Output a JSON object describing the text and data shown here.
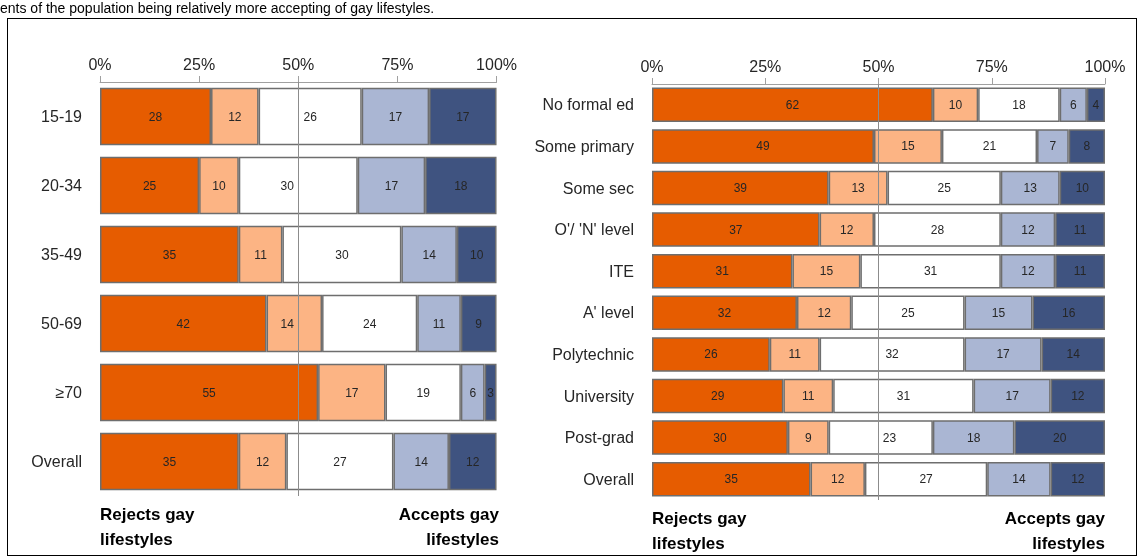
{
  "chart_data": [
    {
      "type": "bar",
      "orientation": "horizontal",
      "stacked": true,
      "title": "ents of the population being relatively more accepting of gay lifestyles.",
      "categories": [
        "15-19",
        "20-34",
        "35-49",
        "50-69",
        "≥70",
        "Overall"
      ],
      "series": [
        {
          "color": "#e65c00",
          "values": [
            28,
            25,
            35,
            42,
            55,
            35
          ]
        },
        {
          "color": "#fcb484",
          "values": [
            12,
            10,
            11,
            14,
            17,
            12
          ]
        },
        {
          "color": "#ffffff",
          "values": [
            26,
            30,
            30,
            24,
            19,
            27
          ]
        },
        {
          "color": "#aab6d3",
          "values": [
            17,
            17,
            14,
            11,
            6,
            14
          ]
        },
        {
          "color": "#3f5380",
          "values": [
            17,
            18,
            10,
            9,
            3,
            12
          ]
        }
      ],
      "xlim": [
        0,
        100
      ],
      "xticks": [
        {
          "value": 0,
          "label": "0%"
        },
        {
          "value": 25,
          "label": "25%"
        },
        {
          "value": 50,
          "label": "50%"
        },
        {
          "value": 75,
          "label": "75%"
        },
        {
          "value": 100,
          "label": "100%"
        }
      ],
      "ref_lines": [
        {
          "axis": "x",
          "value": 50,
          "color": "#8c8c8c"
        }
      ],
      "data_labels": true,
      "annotations": [
        "Rejects gay lifestyles",
        "Accepts gay lifestyles"
      ]
    },
    {
      "type": "bar",
      "orientation": "horizontal",
      "stacked": true,
      "categories": [
        "No formal ed",
        "Some primary",
        "Some sec",
        "O'/ 'N' level",
        "ITE",
        "A' level",
        "Polytechnic",
        "University",
        "Post-grad",
        "Overall"
      ],
      "series": [
        {
          "color": "#e65c00",
          "values": [
            62,
            49,
            39,
            37,
            31,
            32,
            26,
            29,
            30,
            35
          ]
        },
        {
          "color": "#fcb484",
          "values": [
            10,
            15,
            13,
            12,
            15,
            12,
            11,
            11,
            9,
            12
          ]
        },
        {
          "color": "#ffffff",
          "values": [
            18,
            21,
            25,
            28,
            31,
            25,
            32,
            31,
            23,
            27
          ]
        },
        {
          "color": "#aab6d3",
          "values": [
            6,
            7,
            13,
            12,
            12,
            15,
            17,
            17,
            18,
            14
          ]
        },
        {
          "color": "#3f5380",
          "values": [
            4,
            8,
            10,
            11,
            11,
            16,
            14,
            12,
            20,
            12
          ]
        }
      ],
      "xlim": [
        0,
        100
      ],
      "xticks": [
        {
          "value": 0,
          "label": "0%"
        },
        {
          "value": 25,
          "label": "25%"
        },
        {
          "value": 50,
          "label": "50%"
        },
        {
          "value": 75,
          "label": "75%"
        },
        {
          "value": 100,
          "label": "100%"
        }
      ],
      "ref_lines": [
        {
          "axis": "x",
          "value": 50,
          "color": "#8c8c8c"
        }
      ],
      "data_labels": true,
      "annotations": [
        "Rejects gay lifestyles",
        "Accepts gay lifestyles"
      ]
    }
  ]
}
